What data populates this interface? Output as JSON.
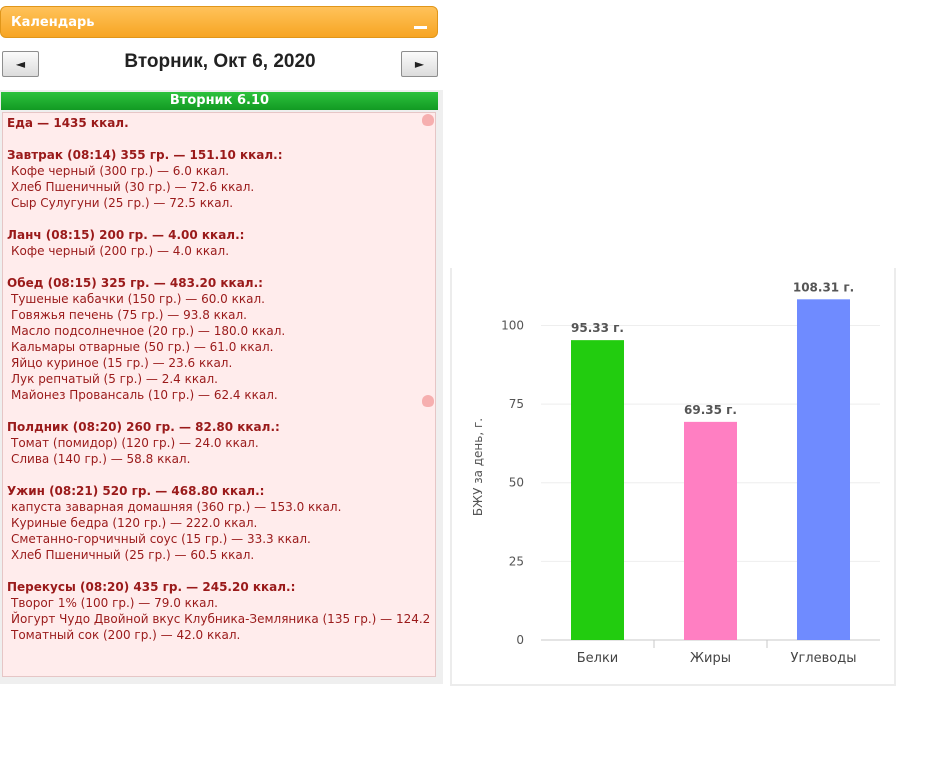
{
  "calendar": {
    "title": "Календарь",
    "prev_label": "◄",
    "next_label": "►",
    "date": "Вторник, Окт 6, 2020",
    "day_bar": "Вторник 6.10"
  },
  "food": {
    "total": "Еда — 1435 ккал.",
    "meals": [
      {
        "header": "Завтрак (08:14) 355 гр. — 151.10 ккал.:",
        "items": [
          "Кофе черный (300 гр.) — 6.0 ккал.",
          "Хлеб Пшеничный (30 гр.) — 72.6 ккал.",
          "Сыр Сулугуни (25 гр.) — 72.5 ккал."
        ]
      },
      {
        "header": "Ланч (08:15) 200 гр. — 4.00 ккал.:",
        "items": [
          "Кофе черный (200 гр.) — 4.0 ккал."
        ]
      },
      {
        "header": "Обед (08:15) 325 гр. — 483.20 ккал.:",
        "items": [
          "Тушеные кабачки (150 гр.) — 60.0 ккал.",
          "Говяжья печень (75 гр.) — 93.8 ккал.",
          "Масло подсолнечное (20 гр.) — 180.0 ккал.",
          "Кальмары отварные (50 гр.) — 61.0 ккал.",
          "Яйцо куриное (15 гр.) — 23.6 ккал.",
          "Лук репчатый (5 гр.) — 2.4 ккал.",
          "Майонез Провансаль (10 гр.) — 62.4 ккал."
        ]
      },
      {
        "header": "Полдник (08:20) 260 гр. — 82.80 ккал.:",
        "items": [
          "Томат (помидор) (120 гр.) — 24.0 ккал.",
          "Слива (140 гр.) — 58.8 ккал."
        ]
      },
      {
        "header": "Ужин (08:21) 520 гр. — 468.80 ккал.:",
        "items": [
          "капуста заварная домашняя (360 гр.) — 153.0 ккал.",
          "Куриные бедра (120 гр.) — 222.0 ккал.",
          "Сметанно-горчичный соус (15 гр.) — 33.3 ккал.",
          "Хлеб Пшеничный (25 гр.) — 60.5 ккал."
        ]
      },
      {
        "header": "Перекусы (08:20) 435 гр. — 245.20 ккал.:",
        "items": [
          "Творог 1% (100 гр.) — 79.0 ккал.",
          "Йогурт Чудо Двойной вкус Клубника-Земляника (135 гр.) — 124.2",
          "Томатный сок (200 гр.) — 42.0 ккал."
        ]
      }
    ]
  },
  "chart_data": {
    "type": "bar",
    "categories": [
      "Белки",
      "Жиры",
      "Углеводы"
    ],
    "values": [
      95.33,
      69.35,
      108.31
    ],
    "data_labels": [
      "95.33 г.",
      "69.35 г.",
      "108.31 г."
    ],
    "colors": [
      "#22cc0f",
      "#ff7fc2",
      "#6f8bff"
    ],
    "title": "",
    "xlabel": "",
    "ylabel": "БЖУ за день, г.",
    "ylim": [
      0,
      110
    ],
    "yticks": [
      0,
      25,
      50,
      75,
      100
    ],
    "grid": true
  }
}
